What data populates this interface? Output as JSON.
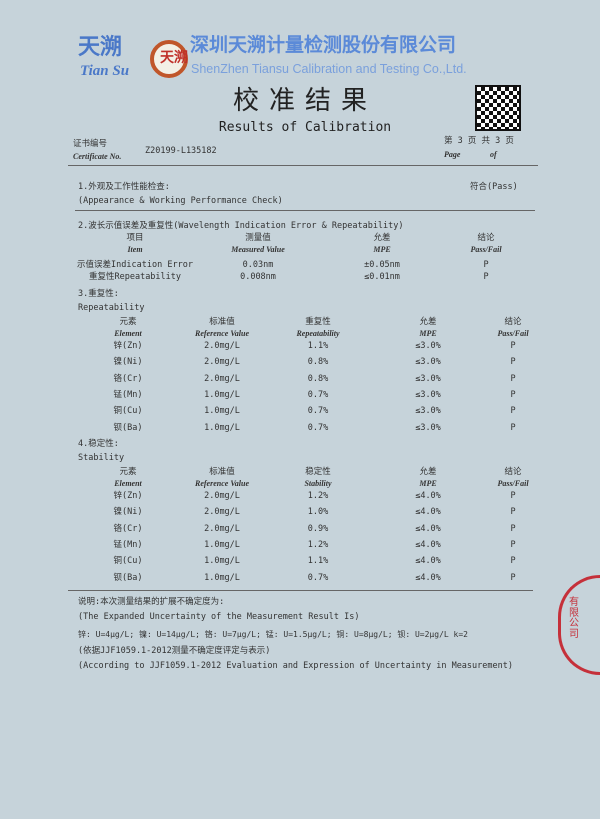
{
  "header": {
    "brand_cn": "天溯",
    "brand_en": "Tian Su",
    "company_cn": "深圳天溯计量检测股份有限公司",
    "company_en": "ShenZhen Tiansu Calibration and Testing Co.,Ltd.",
    "logo_text": "天溯",
    "title_cn": "校准结果",
    "title_en": "Results of Calibration",
    "cert_label_cn": "证书编号",
    "cert_label_en": "Certificate No.",
    "cert_no": "Z20199-L135182",
    "page_cn": "第 3 页  共 3 页",
    "page_en": "Page",
    "of_en": "of"
  },
  "s1": {
    "title": "1.外观及工作性能检查:",
    "title_en": "(Appearance & Working Performance Check)",
    "result": "符合(Pass)"
  },
  "s2": {
    "title": "2.波长示值误差及重复性(Wavelength Indication Error & Repeatability)",
    "headers": [
      {
        "cn": "项目",
        "en": "Item"
      },
      {
        "cn": "测量值",
        "en": "Measured Value"
      },
      {
        "cn": "允差",
        "en": "MPE"
      },
      {
        "cn": "结论",
        "en": "Pass/Fail"
      }
    ],
    "rows": [
      [
        "示值误差Indication Error",
        "0.03nm",
        "±0.05nm",
        "P"
      ],
      [
        "重复性Repeatability",
        "0.008nm",
        "≤0.01nm",
        "P"
      ]
    ]
  },
  "s3": {
    "title": "3.重复性:",
    "title_en": "Repeatability",
    "headers": [
      {
        "cn": "元素",
        "en": "Element"
      },
      {
        "cn": "标准值",
        "en": "Reference Value"
      },
      {
        "cn": "重复性",
        "en": "Repeatability"
      },
      {
        "cn": "允差",
        "en": "MPE"
      },
      {
        "cn": "结论",
        "en": "Pass/Fail"
      }
    ],
    "rows": [
      [
        "锌(Zn)",
        "2.0mg/L",
        "1.1%",
        "≤3.0%",
        "P"
      ],
      [
        "镍(Ni)",
        "2.0mg/L",
        "0.8%",
        "≤3.0%",
        "P"
      ],
      [
        "铬(Cr)",
        "2.0mg/L",
        "0.8%",
        "≤3.0%",
        "P"
      ],
      [
        "锰(Mn)",
        "1.0mg/L",
        "0.7%",
        "≤3.0%",
        "P"
      ],
      [
        "铜(Cu)",
        "1.0mg/L",
        "0.7%",
        "≤3.0%",
        "P"
      ],
      [
        "钡(Ba)",
        "1.0mg/L",
        "0.7%",
        "≤3.0%",
        "P"
      ]
    ]
  },
  "s4": {
    "title": "4.稳定性:",
    "title_en": "Stability",
    "headers": [
      {
        "cn": "元素",
        "en": "Element"
      },
      {
        "cn": "标准值",
        "en": "Reference Value"
      },
      {
        "cn": "稳定性",
        "en": "Stability"
      },
      {
        "cn": "允差",
        "en": "MPE"
      },
      {
        "cn": "结论",
        "en": "Pass/Fail"
      }
    ],
    "rows": [
      [
        "锌(Zn)",
        "2.0mg/L",
        "1.2%",
        "≤4.0%",
        "P"
      ],
      [
        "镍(Ni)",
        "2.0mg/L",
        "1.0%",
        "≤4.0%",
        "P"
      ],
      [
        "铬(Cr)",
        "2.0mg/L",
        "0.9%",
        "≤4.0%",
        "P"
      ],
      [
        "锰(Mn)",
        "1.0mg/L",
        "1.2%",
        "≤4.0%",
        "P"
      ],
      [
        "铜(Cu)",
        "1.0mg/L",
        "1.1%",
        "≤4.0%",
        "P"
      ],
      [
        "钡(Ba)",
        "1.0mg/L",
        "0.7%",
        "≤4.0%",
        "P"
      ]
    ]
  },
  "notes": [
    "说明:本次测量结果的扩展不确定度为:",
    "(The Expanded Uncertainty of the Measurement Result Is)",
    "锌: U=4μg/L; 镍: U=14μg/L; 铬: U=7μg/L; 锰: U=1.5μg/L; 铜: U=8μg/L; 钡: U=2μg/L k=2",
    "(依据JJF1059.1-2012测量不确定度评定与表示)",
    "(According to JJF1059.1-2012 Evaluation and Expression of Uncertainty in Measurement)"
  ],
  "stamp_text": "有限公司"
}
